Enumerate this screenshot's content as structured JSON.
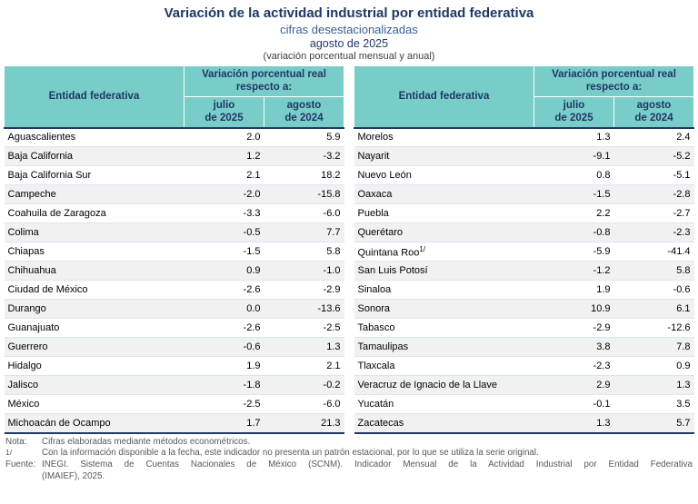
{
  "header": {
    "title": "Variación de la actividad industrial por entidad federativa",
    "subtitle1": "cifras desestacionalizadas",
    "subtitle2": "agosto de 2025",
    "subtitle3": "(variación porcentual mensual y anual)"
  },
  "colors": {
    "header_bg": "#79CDC8",
    "title_navy": "#1F3864",
    "subtitle_blue": "#365F91"
  },
  "table": {
    "entity_header": "Entidad federativa",
    "group_header": "Variación porcentual real\nrespecto a:",
    "sub_col1": "julio\nde 2025",
    "sub_col2": "agosto\nde 2024"
  },
  "chart_data": {
    "type": "table",
    "title": "Variación de la actividad industrial por entidad federativa, agosto de 2025 (variación porcentual mensual y anual, cifras desestacionalizadas)",
    "columns": [
      "Entidad federativa",
      "julio de 2025",
      "agosto de 2024"
    ],
    "tables": [
      {
        "rows": [
          {
            "entidad": "Aguascalientes",
            "jul2025": "2.0",
            "ago2024": "5.9"
          },
          {
            "entidad": "Baja California",
            "jul2025": "1.2",
            "ago2024": "-3.2"
          },
          {
            "entidad": "Baja California Sur",
            "jul2025": "2.1",
            "ago2024": "18.2"
          },
          {
            "entidad": "Campeche",
            "jul2025": "-2.0",
            "ago2024": "-15.8"
          },
          {
            "entidad": "Coahuila de Zaragoza",
            "jul2025": "-3.3",
            "ago2024": "-6.0"
          },
          {
            "entidad": "Colima",
            "jul2025": "-0.5",
            "ago2024": "7.7"
          },
          {
            "entidad": "Chiapas",
            "jul2025": "-1.5",
            "ago2024": "5.8"
          },
          {
            "entidad": "Chihuahua",
            "jul2025": "0.9",
            "ago2024": "-1.0"
          },
          {
            "entidad": "Ciudad de México",
            "jul2025": "-2.6",
            "ago2024": "-2.9"
          },
          {
            "entidad": "Durango",
            "jul2025": "0.0",
            "ago2024": "-13.6"
          },
          {
            "entidad": "Guanajuato",
            "jul2025": "-2.6",
            "ago2024": "-2.5"
          },
          {
            "entidad": "Guerrero",
            "jul2025": "-0.6",
            "ago2024": "1.3"
          },
          {
            "entidad": "Hidalgo",
            "jul2025": "1.9",
            "ago2024": "2.1"
          },
          {
            "entidad": "Jalisco",
            "jul2025": "-1.8",
            "ago2024": "-0.2"
          },
          {
            "entidad": "México",
            "jul2025": "-2.5",
            "ago2024": "-6.0"
          },
          {
            "entidad": "Michoacán de Ocampo",
            "jul2025": "1.7",
            "ago2024": "21.3"
          }
        ]
      },
      {
        "rows": [
          {
            "entidad": "Morelos",
            "jul2025": "1.3",
            "ago2024": "2.4"
          },
          {
            "entidad": "Nayarit",
            "jul2025": "-9.1",
            "ago2024": "-5.2"
          },
          {
            "entidad": "Nuevo León",
            "jul2025": "0.8",
            "ago2024": "-5.1"
          },
          {
            "entidad": "Oaxaca",
            "jul2025": "-1.5",
            "ago2024": "-2.8"
          },
          {
            "entidad": "Puebla",
            "jul2025": "2.2",
            "ago2024": "-2.7"
          },
          {
            "entidad": "Querétaro",
            "jul2025": "-0.8",
            "ago2024": "-2.3"
          },
          {
            "entidad": "Quintana Roo",
            "sup": "1/",
            "jul2025": "-5.9",
            "ago2024": "-41.4"
          },
          {
            "entidad": "San Luis Potosí",
            "jul2025": "-1.2",
            "ago2024": "5.8"
          },
          {
            "entidad": "Sinaloa",
            "jul2025": "1.9",
            "ago2024": "-0.6"
          },
          {
            "entidad": "Sonora",
            "jul2025": "10.9",
            "ago2024": "6.1"
          },
          {
            "entidad": "Tabasco",
            "jul2025": "-2.9",
            "ago2024": "-12.6"
          },
          {
            "entidad": "Tamaulipas",
            "jul2025": "3.8",
            "ago2024": "7.8"
          },
          {
            "entidad": "Tlaxcala",
            "jul2025": "-2.3",
            "ago2024": "0.9"
          },
          {
            "entidad": "Veracruz de Ignacio de la Llave",
            "jul2025": "2.9",
            "ago2024": "1.3"
          },
          {
            "entidad": "Yucatán",
            "jul2025": "-0.1",
            "ago2024": "3.5"
          },
          {
            "entidad": "Zacatecas",
            "jul2025": "1.3",
            "ago2024": "5.7"
          }
        ]
      }
    ]
  },
  "notes": {
    "nota_label": "Nota:",
    "nota_text": "Cifras elaboradas mediante métodos econométricos.",
    "footnote_label": "1/",
    "footnote_text": "Con la información disponible a la fecha, este indicador no presenta un patrón estacional, por lo que se utiliza la serie original.",
    "fuente_label": "Fuente:",
    "fuente_text_line1": "INEGI. Sistema de Cuentas Nacionales de México (SCNM). Indicador Mensual de la Actividad Industrial por Entidad Federativa",
    "fuente_text_line2": "(IMAIEF), 2025."
  }
}
